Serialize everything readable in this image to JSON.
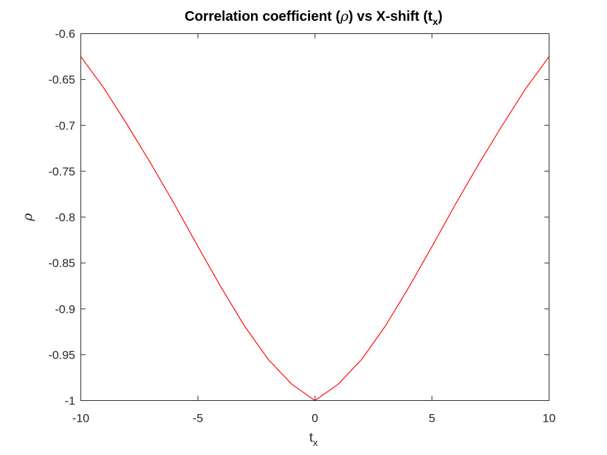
{
  "chart_data": {
    "type": "line",
    "title": {
      "prefix": "Correlation coefficient (",
      "symbol": "ρ",
      "middle": ") vs X-shift (t",
      "subscript": "x",
      "suffix": ")"
    },
    "xlabel": {
      "main": "t",
      "subscript": "x"
    },
    "ylabel": "ρ",
    "xlim": [
      -10,
      10
    ],
    "ylim": [
      -1,
      -0.6
    ],
    "xticks": [
      -10,
      -5,
      0,
      5,
      10
    ],
    "xtick_labels": [
      "-10",
      "-5",
      "0",
      "5",
      "10"
    ],
    "yticks": [
      -1,
      -0.95,
      -0.9,
      -0.85,
      -0.8,
      -0.75,
      -0.7,
      -0.65,
      -0.6
    ],
    "ytick_labels": [
      "-1",
      "-0.95",
      "-0.9",
      "-0.85",
      "-0.8",
      "-0.75",
      "-0.7",
      "-0.65",
      "-0.6"
    ],
    "grid": false,
    "series": [
      {
        "color": "#ff0000",
        "x": [
          -10,
          -9,
          -8,
          -7,
          -6,
          -5,
          -4,
          -3,
          -2,
          -1,
          0,
          1,
          2,
          3,
          4,
          5,
          6,
          7,
          8,
          9,
          10
        ],
        "y": [
          -0.625,
          -0.66,
          -0.7,
          -0.742,
          -0.786,
          -0.832,
          -0.877,
          -0.919,
          -0.955,
          -0.982,
          -1.0,
          -0.982,
          -0.955,
          -0.919,
          -0.877,
          -0.832,
          -0.786,
          -0.742,
          -0.7,
          -0.66,
          -0.625
        ]
      }
    ]
  }
}
